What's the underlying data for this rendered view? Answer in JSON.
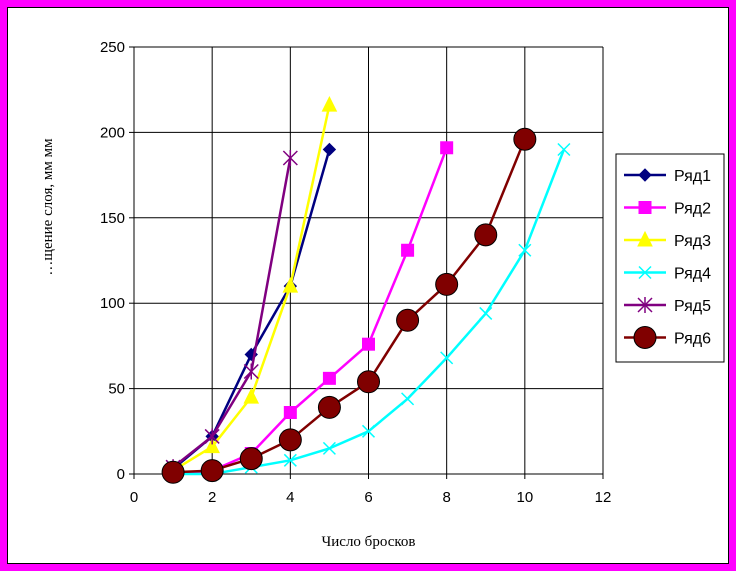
{
  "chart_data": {
    "type": "line",
    "title": "",
    "xlabel": "Число бросков",
    "ylabel": "…щение слоя, мм мм",
    "xlim": [
      0,
      12
    ],
    "ylim": [
      0,
      250
    ],
    "xticks": [
      0,
      2,
      4,
      6,
      8,
      10,
      12
    ],
    "yticks": [
      0,
      50,
      100,
      150,
      200,
      250
    ],
    "grid": true,
    "legend_position": "right",
    "series": [
      {
        "name": "Ряд1",
        "color": "#000080",
        "marker": "diamond",
        "x": [
          1,
          2,
          3,
          4,
          5
        ],
        "y": [
          3,
          22,
          70,
          110,
          190
        ]
      },
      {
        "name": "Ряд2",
        "color": "#ff00ff",
        "marker": "square",
        "x": [
          1,
          2,
          3,
          4,
          5,
          6,
          7,
          8
        ],
        "y": [
          0,
          2,
          12,
          36,
          56,
          76,
          131,
          191
        ]
      },
      {
        "name": "Ряд3",
        "color": "#ffff00",
        "marker": "triangle",
        "x": [
          1,
          2,
          3,
          4,
          5
        ],
        "y": [
          2,
          16,
          45,
          110,
          216
        ]
      },
      {
        "name": "Ряд4",
        "color": "#00ffff",
        "marker": "x",
        "x": [
          1,
          2,
          3,
          4,
          5,
          6,
          7,
          8,
          9,
          10,
          11
        ],
        "y": [
          0,
          0,
          4,
          8,
          15,
          25,
          44,
          68,
          94,
          131,
          190
        ]
      },
      {
        "name": "Ряд5",
        "color": "#800080",
        "marker": "star",
        "x": [
          1,
          2,
          3,
          4
        ],
        "y": [
          4,
          22,
          60,
          185
        ]
      },
      {
        "name": "Ряд6",
        "color": "#800000",
        "marker": "circle",
        "x": [
          1,
          2,
          3,
          4,
          5,
          6,
          7,
          8,
          9,
          10
        ],
        "y": [
          1,
          2,
          9,
          20,
          39,
          54,
          90,
          111,
          140,
          196
        ]
      }
    ]
  }
}
